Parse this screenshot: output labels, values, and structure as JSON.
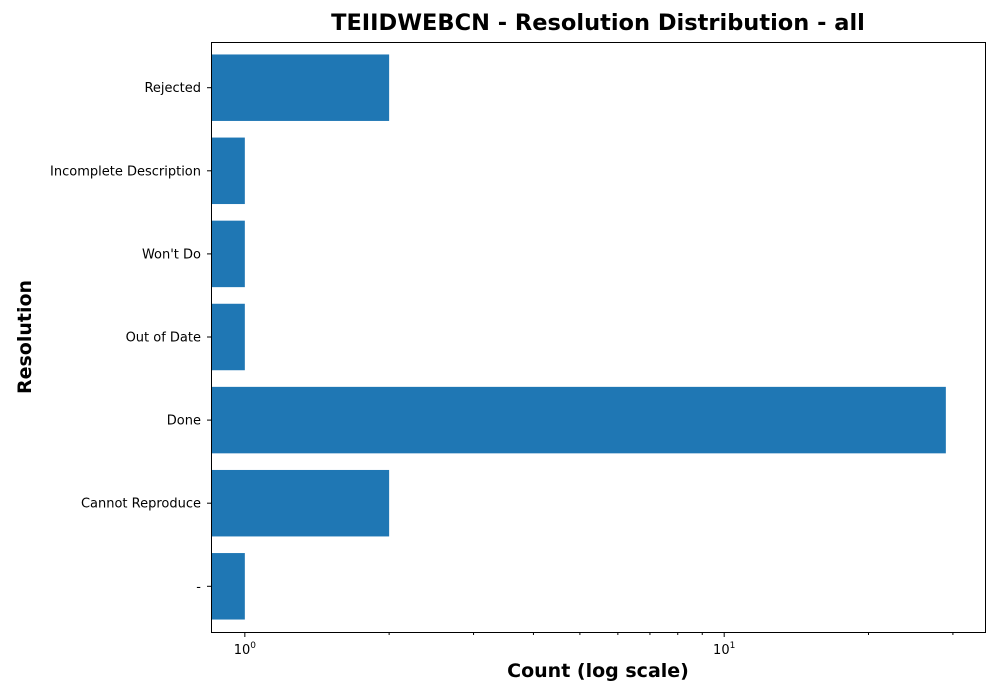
{
  "chart_data": {
    "type": "bar",
    "orientation": "horizontal",
    "title": "TEIIDWEBCN - Resolution Distribution - all",
    "xlabel": "Count (log scale)",
    "ylabel": "Resolution",
    "x_scale": "log",
    "xlim": [
      0.85,
      35
    ],
    "x_major_ticks": [
      1,
      10
    ],
    "x_tick_labels": [
      "10^0",
      "10^1"
    ],
    "categories": [
      "-",
      "Cannot Reproduce",
      "Done",
      "Out of Date",
      "Won't Do",
      "Incomplete Description",
      "Rejected"
    ],
    "values": [
      1,
      2,
      29,
      1,
      1,
      1,
      2
    ],
    "bar_color": "#1f77b4",
    "grid": false,
    "legend": "none"
  }
}
